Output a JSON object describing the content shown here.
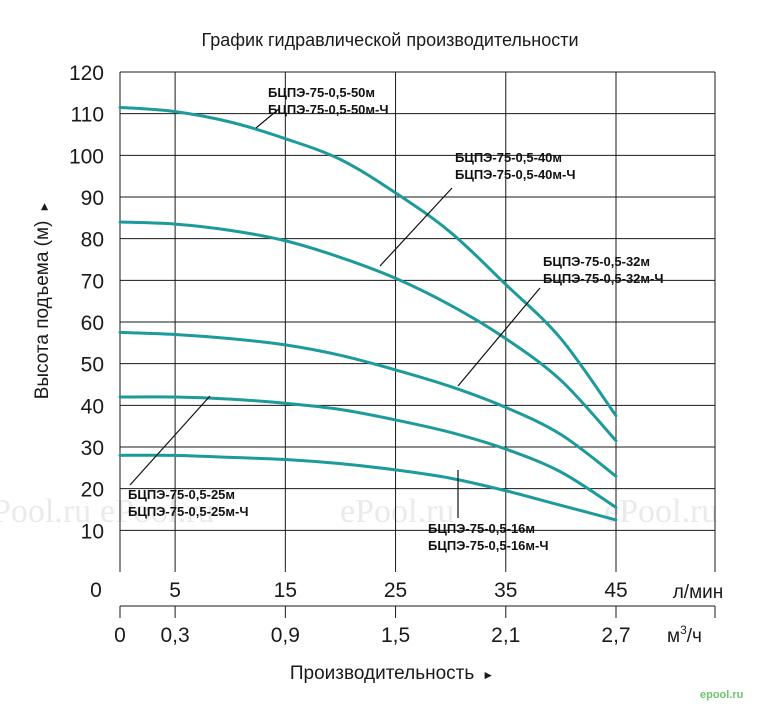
{
  "chart_data": {
    "type": "line",
    "title": "График гидравлической производительности",
    "ylabel": "Высота подъема (м)",
    "ylabel_arrow": "►",
    "xlabel": "Производительность",
    "xlabel_arrow": "►",
    "ylim": [
      0,
      120
    ],
    "y_ticks": [
      "10",
      "20",
      "30",
      "40",
      "50",
      "60",
      "70",
      "80",
      "90",
      "100",
      "110",
      "120"
    ],
    "y_zero": "0",
    "x_ticks_lmin": [
      "5",
      "15",
      "25",
      "35",
      "45"
    ],
    "x_unit_lmin": "л/мин",
    "x_ticks_m3h": [
      "0",
      "0,3",
      "0,9",
      "1,5",
      "2,1",
      "2,7"
    ],
    "x_unit_m3h_base": "м",
    "x_unit_m3h_sup": "3",
    "x_unit_m3h_tail": "/ч",
    "grid": true,
    "curve_color": "#1d9a9a",
    "series": [
      {
        "name": "БЦПЭ-75-0,5-50м",
        "name2": "БЦПЭ-75-0,5-50м-Ч",
        "x": [
          0,
          5,
          10,
          15,
          20,
          25,
          30,
          35,
          40,
          45
        ],
        "y": [
          111.5,
          110.5,
          108,
          104,
          99,
          91,
          81.5,
          69,
          56,
          37.5
        ]
      },
      {
        "name": "БЦПЭ-75-0,5-40м",
        "name2": "БЦПЭ-75-0,5-40м-Ч",
        "x": [
          0,
          5,
          10,
          15,
          20,
          25,
          30,
          35,
          40,
          45
        ],
        "y": [
          84,
          83.5,
          82,
          79.5,
          75.5,
          70.5,
          64,
          56,
          46,
          31.5
        ]
      },
      {
        "name": "БЦПЭ-75-0,5-32м",
        "name2": "БЦПЭ-75-0,5-32м-Ч",
        "x": [
          0,
          5,
          10,
          15,
          20,
          25,
          30,
          35,
          40,
          45
        ],
        "y": [
          57.5,
          57,
          56,
          54.5,
          52,
          48.5,
          44.5,
          39.5,
          33,
          23
        ]
      },
      {
        "name": "БЦПЭ-75-0,5-25м",
        "name2": "БЦПЭ-75-0,5-25м-Ч",
        "x": [
          0,
          5,
          10,
          15,
          20,
          25,
          30,
          35,
          40,
          45
        ],
        "y": [
          42,
          42,
          41.5,
          40.5,
          39,
          36.5,
          33.5,
          29.5,
          24,
          15.5
        ]
      },
      {
        "name": "БЦПЭ-75-0,5-16м",
        "name2": "БЦПЭ-75-0,5-16м-Ч",
        "x": [
          0,
          5,
          10,
          15,
          20,
          25,
          30,
          35,
          40,
          45
        ],
        "y": [
          28,
          28,
          27.5,
          27,
          26,
          24.5,
          22.5,
          19.5,
          16,
          12.5
        ]
      }
    ]
  },
  "watermarks": [
    "Pool.ru",
    "ePool.ru",
    "ePool.ru",
    "ePool.ru"
  ],
  "corner_mark": "epool.ru"
}
